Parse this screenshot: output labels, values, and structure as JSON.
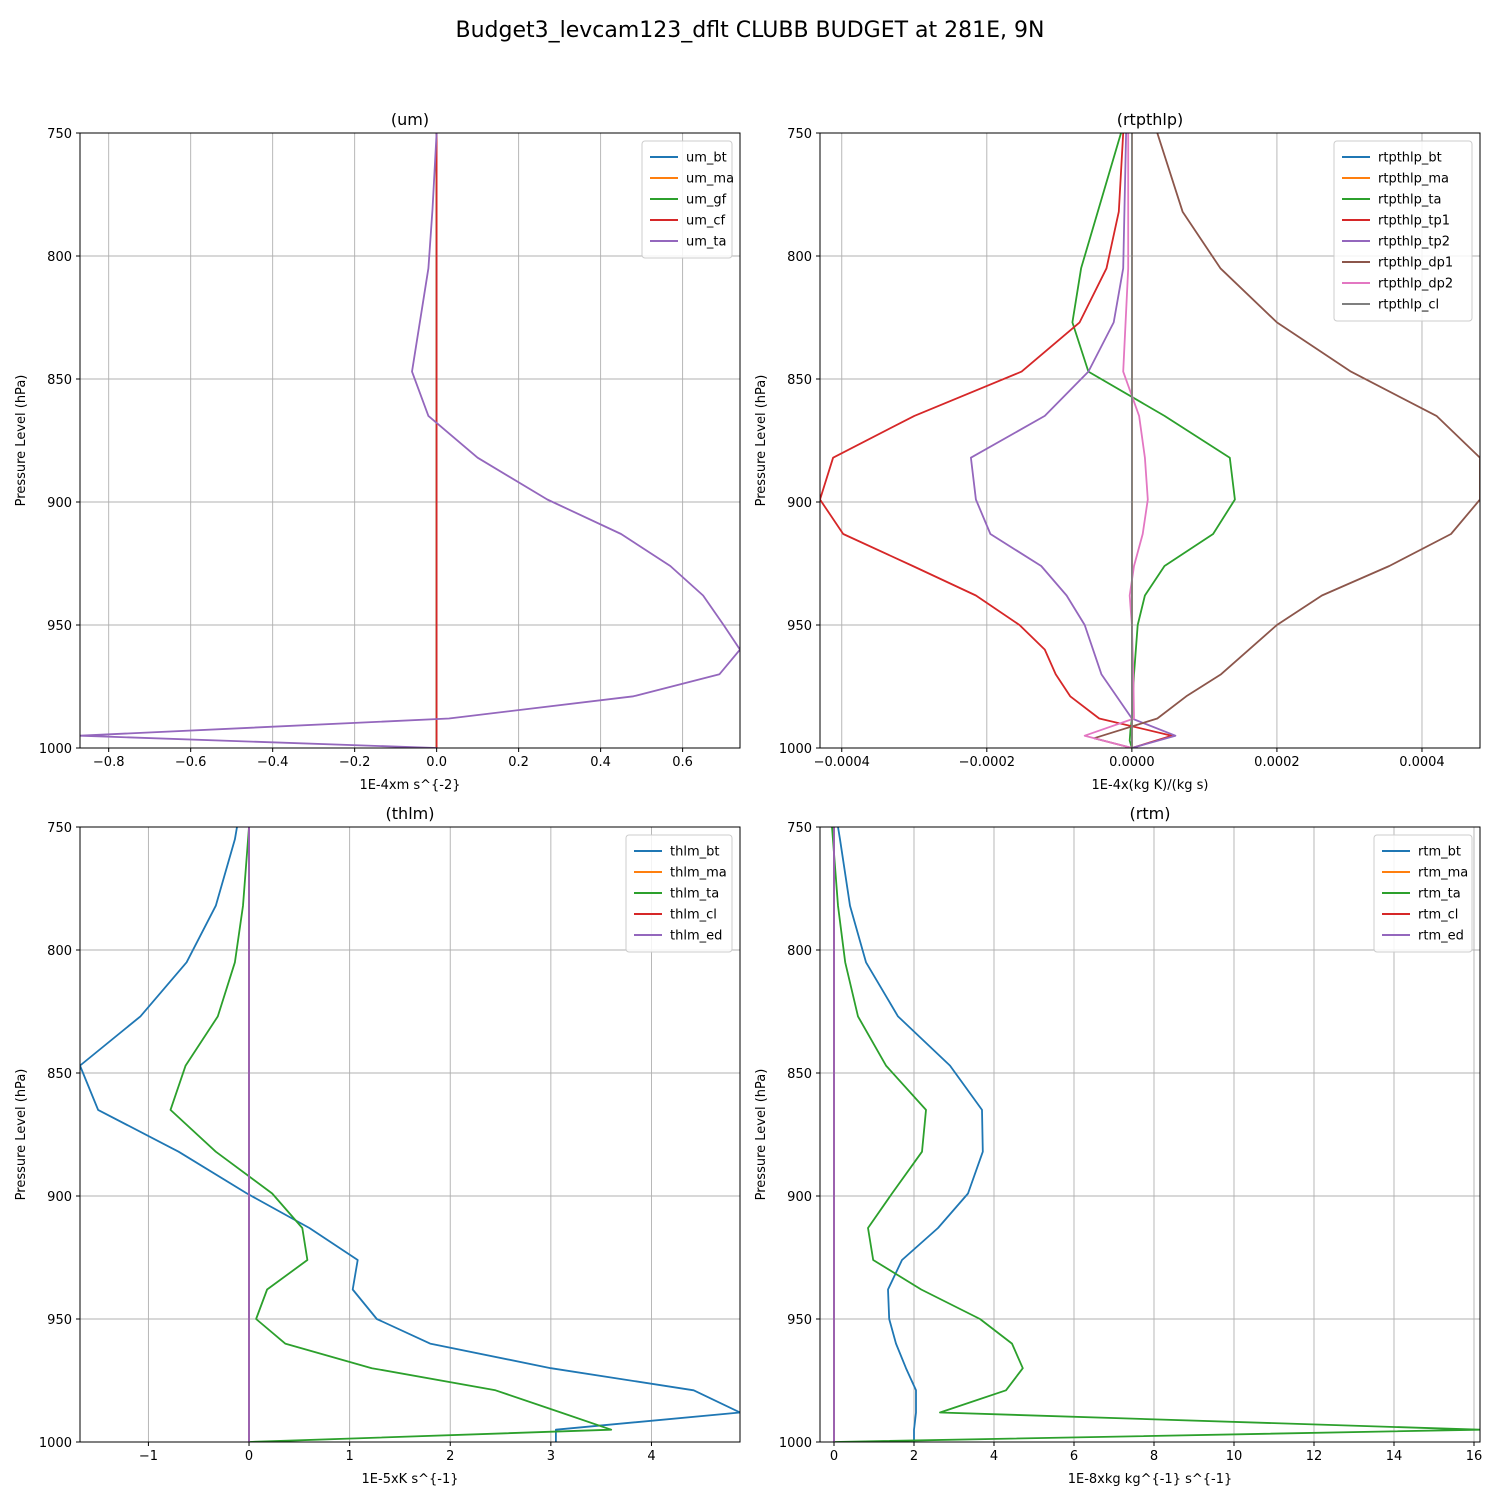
{
  "figure": {
    "title": "Budget3_levcam123_dflt CLUBB BUDGET at 281E, 9N"
  },
  "colors": {
    "C0": "#1f77b4",
    "C1": "#ff7f0e",
    "C2": "#2ca02c",
    "C3": "#d62728",
    "C4": "#9467bd",
    "C5": "#8c564b",
    "C6": "#e377c2",
    "C7": "#7f7f7f",
    "grid": "#b0b0b0"
  },
  "chart_data": [
    {
      "type": "line",
      "title": "(um)",
      "xlabel": "1E-4xm s^{-2}",
      "ylabel": "Pressure Level (hPa)",
      "xlim": [
        -0.87,
        0.74
      ],
      "ylim": [
        1000,
        750
      ],
      "xticks": [
        -0.8,
        -0.6,
        -0.4,
        -0.2,
        0.0,
        0.2,
        0.4,
        0.6
      ],
      "xtick_labels": [
        "−0.8",
        "−0.6",
        "−0.4",
        "−0.2",
        "0.0",
        "0.2",
        "0.4",
        "0.6"
      ],
      "yticks": [
        750,
        800,
        850,
        900,
        950,
        1000
      ],
      "ytick_labels": [
        "750",
        "800",
        "850",
        "900",
        "950",
        "1000"
      ],
      "grid": true,
      "legend": "top-right",
      "series": [
        {
          "name": "um_bt",
          "color": "C0",
          "x": [
            0.0,
            0.0,
            0.0,
            0.0,
            0.0,
            0.0,
            0.0,
            0.0,
            0.0,
            0.0,
            0.0,
            0.0,
            0.0,
            0.0,
            0.0,
            0.0,
            0.0,
            0.0,
            0.0
          ],
          "y": [
            750,
            781,
            805,
            847,
            865,
            882,
            899,
            913,
            926,
            938,
            950,
            960,
            970,
            979,
            988,
            995,
            1000,
            1000,
            1000
          ]
        },
        {
          "name": "um_ma",
          "color": "C1",
          "x": [
            0.0,
            0.0,
            0.0,
            0.0,
            0.0,
            0.0
          ],
          "y": [
            750,
            800,
            850,
            900,
            950,
            1000
          ]
        },
        {
          "name": "um_gf",
          "color": "C2",
          "x": [
            0.0,
            0.0,
            0.0,
            0.0,
            0.0,
            0.0
          ],
          "y": [
            750,
            800,
            850,
            900,
            950,
            1000
          ]
        },
        {
          "name": "um_cf",
          "color": "C3",
          "x": [
            0.0,
            0.0,
            0.0,
            0.0,
            0.0,
            0.0
          ],
          "y": [
            750,
            800,
            850,
            900,
            950,
            1000
          ]
        },
        {
          "name": "um_ta",
          "color": "C4",
          "x": [
            0.0,
            -0.01,
            -0.02,
            -0.06,
            -0.02,
            0.1,
            0.27,
            0.45,
            0.57,
            0.65,
            0.7,
            0.74,
            0.69,
            0.48,
            0.03,
            -0.87,
            0.0
          ],
          "y": [
            750,
            781,
            805,
            847,
            865,
            882,
            899,
            913,
            926,
            938,
            950,
            960,
            970,
            979,
            988,
            995,
            1000
          ]
        }
      ]
    },
    {
      "type": "line",
      "title": "(rtpthlp)",
      "xlabel": "1E-4x(kg K)/(kg s)",
      "ylabel": "Pressure Level (hPa)",
      "xlim": [
        -0.00043,
        0.00048
      ],
      "ylim": [
        1000,
        750
      ],
      "xticks": [
        -0.0004,
        -0.0002,
        0.0,
        0.0002,
        0.0004
      ],
      "xtick_labels": [
        "−0.0004",
        "−0.0002",
        "0.0000",
        "0.0002",
        "0.0004"
      ],
      "yticks": [
        750,
        800,
        850,
        900,
        950,
        1000
      ],
      "ytick_labels": [
        "750",
        "800",
        "850",
        "900",
        "950",
        "1000"
      ],
      "grid": true,
      "legend": "top-right",
      "series": [
        {
          "name": "rtpthlp_bt",
          "color": "C0",
          "x": [
            0.0,
            0.0,
            0.0,
            0.0,
            0.0,
            0.0
          ],
          "y": [
            750,
            800,
            850,
            900,
            950,
            1000
          ]
        },
        {
          "name": "rtpthlp_ma",
          "color": "C1",
          "x": [
            0.0,
            0.0,
            0.0,
            0.0,
            0.0,
            0.0
          ],
          "y": [
            750,
            800,
            850,
            900,
            950,
            1000
          ]
        },
        {
          "name": "rtpthlp_ta",
          "color": "C2",
          "x": [
            -1.5e-05,
            -7e-05,
            -8.2e-05,
            -6e-05,
            4.5e-05,
            0.000135,
            0.000142,
            0.000112,
            4.5e-05,
            1.8e-05,
            8e-06,
            3e-06,
            0.0,
            -2e-06,
            -3e-06,
            0.0
          ],
          "y": [
            750,
            805,
            827,
            847,
            865,
            882,
            899,
            913,
            926,
            938,
            950,
            970,
            988,
            993,
            997,
            1000
          ]
        },
        {
          "name": "rtpthlp_tp1",
          "color": "C3",
          "x": [
            -1.2e-05,
            -1.8e-05,
            -3.5e-05,
            -7.2e-05,
            -0.000152,
            -0.0003,
            -0.000412,
            -0.00043,
            -0.000398,
            -0.000302,
            -0.000215,
            -0.000155,
            -0.00012,
            -0.000105,
            -8.5e-05,
            -4.5e-05,
            5.5e-05,
            0.0
          ],
          "y": [
            750,
            782,
            805,
            827,
            847,
            865,
            882,
            899,
            913,
            926,
            938,
            950,
            960,
            970,
            979,
            988,
            995,
            1000
          ]
        },
        {
          "name": "rtpthlp_tp2",
          "color": "C4",
          "x": [
            -8e-06,
            -1.2e-05,
            -2.5e-05,
            -6e-05,
            -0.00012,
            -0.000222,
            -0.000215,
            -0.000195,
            -0.000125,
            -9e-05,
            -6.5e-05,
            -4.2e-05,
            0.0,
            6e-05,
            0.0
          ],
          "y": [
            750,
            805,
            827,
            847,
            865,
            882,
            899,
            913,
            926,
            938,
            950,
            970,
            988,
            995,
            1000
          ]
        },
        {
          "name": "rtpthlp_dp1",
          "color": "C5",
          "x": [
            3.5e-05,
            7e-05,
            0.000122,
            0.0002,
            0.000302,
            0.00042,
            0.00048,
            0.00048,
            0.00044,
            0.000355,
            0.000262,
            0.0002,
            0.000123,
            7.5e-05,
            3.5e-05,
            -5.2e-05,
            0.0
          ],
          "y": [
            750,
            782,
            805,
            827,
            847,
            865,
            882,
            899,
            913,
            926,
            938,
            950,
            970,
            979,
            988,
            996,
            1000
          ]
        },
        {
          "name": "rtpthlp_dp2",
          "color": "C6",
          "x": [
            -5e-06,
            -5e-06,
            -1.2e-05,
            1e-05,
            1.8e-05,
            2.2e-05,
            1.5e-05,
            3e-06,
            -3e-06,
            0.0,
            2e-06,
            3e-06,
            -6.5e-05,
            0.0
          ],
          "y": [
            750,
            805,
            847,
            865,
            882,
            899,
            913,
            926,
            938,
            950,
            970,
            988,
            995,
            1000
          ]
        },
        {
          "name": "rtpthlp_cl",
          "color": "C7",
          "x": [
            0.0,
            0.0,
            0.0,
            0.0,
            0.0,
            0.0
          ],
          "y": [
            750,
            800,
            850,
            900,
            950,
            1000
          ]
        }
      ]
    },
    {
      "type": "line",
      "title": "(thlm)",
      "xlabel": "1E-5xK s^{-1}",
      "ylabel": "Pressure Level (hPa)",
      "xlim": [
        -1.68,
        4.88
      ],
      "ylim": [
        1000,
        750
      ],
      "xticks": [
        -1,
        0,
        1,
        2,
        3,
        4
      ],
      "xtick_labels": [
        "−1",
        "0",
        "1",
        "2",
        "3",
        "4"
      ],
      "yticks": [
        750,
        800,
        850,
        900,
        950,
        1000
      ],
      "ytick_labels": [
        "750",
        "800",
        "850",
        "900",
        "950",
        "1000"
      ],
      "grid": true,
      "legend": "top-right",
      "series": [
        {
          "name": "thlm_bt",
          "color": "C0",
          "x": [
            -0.12,
            -0.14,
            -0.33,
            -0.62,
            -1.08,
            -1.68,
            -1.5,
            -0.7,
            -0.02,
            0.6,
            1.08,
            1.03,
            1.27,
            1.8,
            3.0,
            4.42,
            4.88,
            3.05,
            3.05
          ],
          "y": [
            750,
            755,
            782,
            805,
            827,
            847,
            865,
            882,
            899,
            913,
            926,
            938,
            950,
            960,
            970,
            979,
            988,
            995,
            1000
          ]
        },
        {
          "name": "thlm_ma",
          "color": "C1",
          "x": [
            0.0,
            0.0,
            0.0,
            0.0,
            0.0,
            0.0
          ],
          "y": [
            750,
            800,
            850,
            900,
            950,
            1000
          ]
        },
        {
          "name": "thlm_ta",
          "color": "C2",
          "x": [
            0.0,
            -0.06,
            -0.14,
            -0.31,
            -0.63,
            -0.78,
            -0.33,
            0.23,
            0.53,
            0.58,
            0.18,
            0.07,
            0.36,
            1.22,
            2.45,
            3.1,
            3.6,
            0.0
          ],
          "y": [
            750,
            782,
            805,
            827,
            847,
            865,
            882,
            899,
            913,
            926,
            938,
            950,
            960,
            970,
            979,
            988,
            995,
            1000
          ]
        },
        {
          "name": "thlm_cl",
          "color": "C3",
          "x": [
            0.0,
            0.0,
            0.0,
            0.0,
            0.0,
            0.0
          ],
          "y": [
            750,
            800,
            850,
            900,
            950,
            1000
          ]
        },
        {
          "name": "thlm_ed",
          "color": "C4",
          "x": [
            0.0,
            0.0,
            0.0,
            0.0,
            0.0,
            0.0
          ],
          "y": [
            750,
            800,
            850,
            900,
            950,
            1000
          ]
        }
      ]
    },
    {
      "type": "line",
      "title": "(rtm)",
      "xlabel": "1E-8xkg kg^{-1} s^{-1}",
      "ylabel": "Pressure Level (hPa)",
      "xlim": [
        -0.35,
        16.15
      ],
      "ylim": [
        1000,
        750
      ],
      "xticks": [
        0,
        2,
        4,
        6,
        8,
        10,
        12,
        14,
        16
      ],
      "xtick_labels": [
        "0",
        "2",
        "4",
        "6",
        "8",
        "10",
        "12",
        "14",
        "16"
      ],
      "yticks": [
        750,
        800,
        850,
        900,
        950,
        1000
      ],
      "ytick_labels": [
        "750",
        "800",
        "850",
        "900",
        "950",
        "1000"
      ],
      "grid": true,
      "legend": "top-right",
      "series": [
        {
          "name": "rtm_bt",
          "color": "C0",
          "x": [
            0.1,
            0.15,
            0.4,
            0.8,
            1.6,
            2.9,
            3.7,
            3.72,
            3.35,
            2.6,
            1.7,
            1.35,
            1.38,
            1.55,
            1.8,
            2.05,
            2.05,
            2.0,
            2.0
          ],
          "y": [
            750,
            755,
            782,
            805,
            827,
            847,
            865,
            882,
            899,
            913,
            926,
            938,
            950,
            960,
            970,
            979,
            988,
            995,
            1000
          ]
        },
        {
          "name": "rtm_ma",
          "color": "C1",
          "x": [
            0.0,
            0.0,
            0.0,
            0.0,
            0.0,
            0.0
          ],
          "y": [
            750,
            800,
            850,
            900,
            950,
            1000
          ]
        },
        {
          "name": "rtm_ta",
          "color": "C2",
          "x": [
            -0.05,
            0.1,
            0.28,
            0.6,
            1.3,
            2.3,
            2.2,
            1.45,
            0.85,
            0.98,
            2.18,
            3.65,
            4.45,
            4.72,
            4.3,
            2.65,
            16.15,
            0.0
          ],
          "y": [
            750,
            782,
            805,
            827,
            847,
            865,
            882,
            899,
            913,
            926,
            938,
            950,
            960,
            970,
            979,
            988,
            995,
            1000
          ]
        },
        {
          "name": "rtm_cl",
          "color": "C3",
          "x": [
            0.0,
            0.0,
            0.0,
            0.0,
            0.0,
            0.0
          ],
          "y": [
            750,
            800,
            850,
            900,
            950,
            1000
          ]
        },
        {
          "name": "rtm_ed",
          "color": "C4",
          "x": [
            0.0,
            0.0,
            0.0,
            0.0,
            0.0,
            0.0
          ],
          "y": [
            750,
            800,
            850,
            900,
            950,
            1000
          ]
        }
      ]
    }
  ]
}
